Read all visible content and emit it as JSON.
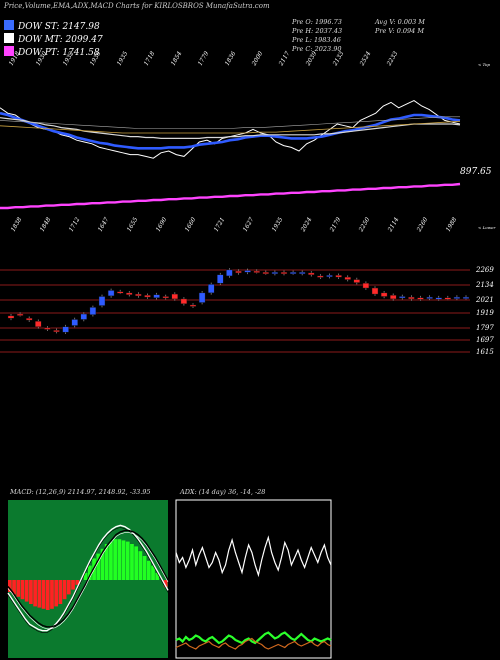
{
  "header": {
    "title": "Price,Volume,EMA,ADX,MACD Charts for KIRLOSBROS MunafaSutra.com"
  },
  "legend": [
    {
      "label": "DOW ST: 2147.98",
      "color": "#3a6cff"
    },
    {
      "label": "DOW MT: 2099.47",
      "color": "#ffffff"
    },
    {
      "label": "DOW PT: 1741.58",
      "color": "#ff44ff"
    }
  ],
  "ohlc": {
    "open": "Pre  O: 1996.73",
    "high": "Pre  H: 2037.43",
    "low": "Pre  L: 1983.46",
    "close": "Pre  C: 2023.90",
    "avg_volume": "Avg V: 0.003  M",
    "pre_volume": "Pre  V: 0.094  M"
  },
  "colors": {
    "ema_short": "#2f5bff",
    "ema_long": "#ff44ff",
    "up_candle": "#2f5bff",
    "down_candle": "#ff2a2a",
    "gridline": "#8b1a1a",
    "macd_panel_bg": "#0b7a2e",
    "macd_hist_pos": "#22ff22",
    "macd_hist_neg": "#ff2222"
  },
  "chart_data": [
    {
      "type": "line",
      "title": "EMA panel",
      "top_labels": [
        "1918",
        "1930",
        "1932",
        "1936",
        "1935",
        "1718",
        "1854",
        "1779",
        "1836",
        "2000",
        "2117",
        "2039",
        "2133",
        "2524",
        "2233"
      ],
      "bottom_labels": [
        "1838",
        "1848",
        "1712",
        "1647",
        "1655",
        "1690",
        "1660",
        "1721",
        "1627",
        "1935",
        "2024",
        "2179",
        "2250",
        "2114",
        "2260",
        "1988"
      ],
      "right_top_label": "< Top",
      "right_bottom_label": "< Lower",
      "last_value_label": "897.65",
      "series": [
        {
          "name": "price",
          "values": [
            58,
            52,
            50,
            44,
            40,
            36,
            34,
            32,
            28,
            26,
            22,
            20,
            18,
            14,
            12,
            10,
            8,
            6,
            6,
            4,
            2,
            8,
            10,
            6,
            4,
            12,
            20,
            22,
            18,
            24,
            26,
            28,
            30,
            34,
            30,
            28,
            20,
            16,
            14,
            10,
            18,
            22,
            28,
            34,
            40,
            38,
            36,
            44,
            48,
            52,
            60,
            64,
            58,
            62,
            66,
            60,
            56,
            50,
            44,
            42,
            40
          ]
        },
        {
          "name": "ema-fast",
          "values": [
            52,
            50,
            47,
            44,
            41,
            38,
            35,
            32,
            30,
            28,
            25,
            23,
            21,
            19,
            18,
            16,
            15,
            14,
            13,
            13,
            13,
            13,
            14,
            14,
            14,
            15,
            17,
            18,
            19,
            20,
            22,
            23,
            25,
            26,
            27,
            27,
            26,
            25,
            24,
            24,
            24,
            25,
            26,
            28,
            30,
            32,
            33,
            35,
            37,
            39,
            42,
            45,
            46,
            48,
            50,
            50,
            49,
            48,
            47,
            45,
            44
          ]
        },
        {
          "name": "ema-mid",
          "values": [
            47,
            46,
            45,
            44,
            42,
            41,
            39,
            38,
            36,
            35,
            34,
            32,
            31,
            30,
            29,
            28,
            27,
            26,
            26,
            25,
            25,
            24,
            24,
            24,
            24,
            24,
            24,
            25,
            25,
            25,
            26,
            26,
            27,
            27,
            28,
            28,
            28,
            28,
            28,
            28,
            28,
            28,
            29,
            29,
            30,
            31,
            32,
            33,
            34,
            35,
            36,
            37,
            38,
            39,
            40,
            40,
            40,
            40,
            40,
            40,
            39
          ]
        },
        {
          "name": "ema-slow",
          "values": [
            -10,
            -10,
            -9,
            -9,
            -8,
            -8,
            -7,
            -7,
            -6,
            -6,
            -5,
            -5,
            -4,
            -4,
            -3,
            -3,
            -2,
            -2,
            -1,
            -1,
            0,
            0,
            1,
            1,
            2,
            2,
            3,
            3,
            4,
            4,
            5,
            5,
            6,
            6,
            7,
            7,
            8,
            8,
            9,
            9,
            10,
            10,
            11,
            11,
            12,
            12,
            13,
            13,
            14,
            14,
            15,
            15,
            16,
            16,
            17,
            17,
            18,
            18,
            19,
            19,
            20
          ]
        }
      ]
    },
    {
      "type": "bar",
      "title": "Candlestick panel",
      "y_levels": [
        "2269",
        "2134",
        "2021",
        "1919",
        "1797",
        "1697",
        "1615"
      ],
      "series": [
        {
          "name": "open",
          "values": [
            1890,
            1905,
            1870,
            1845,
            1790,
            1770,
            1755,
            1810,
            1860,
            1900,
            1975,
            2055,
            2090,
            2080,
            2070,
            2060,
            2040,
            2050,
            2070,
            2030,
            1980,
            2000,
            2080,
            2160,
            2220,
            2260,
            2250,
            2260,
            2250,
            2240,
            2250,
            2245,
            2240,
            2245,
            2220,
            2215,
            2225,
            2210,
            2190,
            2160,
            2120,
            2080,
            2060,
            2040,
            2045,
            2040,
            2035,
            2030,
            2040,
            2035,
            2040
          ]
        },
        {
          "name": "close",
          "values": [
            1870,
            1900,
            1855,
            1800,
            1780,
            1760,
            1800,
            1860,
            1905,
            1960,
            2050,
            2100,
            2085,
            2065,
            2055,
            2045,
            2065,
            2040,
            2030,
            1990,
            1970,
            2080,
            2150,
            2230,
            2270,
            2245,
            2265,
            2255,
            2245,
            2250,
            2240,
            2250,
            2250,
            2230,
            2210,
            2225,
            2210,
            2190,
            2165,
            2120,
            2070,
            2050,
            2030,
            2050,
            2030,
            2030,
            2045,
            2040,
            2035,
            2045,
            2045
          ]
        }
      ]
    },
    {
      "type": "line",
      "title": "MACD",
      "params": "MACD: (12,26,9) 2114.97, 2148.92, -33.95",
      "histogram": [
        -10,
        -12,
        -14,
        -16,
        -18,
        -20,
        -22,
        -23,
        -24,
        -25,
        -24,
        -22,
        -20,
        -16,
        -12,
        -8,
        -4,
        0,
        6,
        12,
        18,
        22,
        26,
        30,
        32,
        34,
        34,
        33,
        32,
        30,
        28,
        24,
        20,
        16,
        12,
        6,
        0,
        -6
      ],
      "series": [
        {
          "name": "macd",
          "values": [
            -20,
            -30,
            -40,
            -50,
            -60,
            -68,
            -72,
            -76,
            -78,
            -78,
            -74,
            -68,
            -60,
            -50,
            -38,
            -26,
            -12,
            2,
            16,
            30,
            42,
            54,
            64,
            72,
            78,
            82,
            84,
            82,
            78,
            72,
            64,
            54,
            44,
            32,
            20,
            8,
            -4,
            -16
          ]
        },
        {
          "name": "signal",
          "values": [
            -10,
            -18,
            -28,
            -38,
            -46,
            -54,
            -60,
            -66,
            -70,
            -72,
            -72,
            -70,
            -66,
            -60,
            -52,
            -42,
            -30,
            -18,
            -6,
            8,
            20,
            32,
            44,
            54,
            62,
            70,
            74,
            76,
            76,
            74,
            70,
            64,
            56,
            46,
            36,
            24,
            12,
            0
          ]
        }
      ]
    },
    {
      "type": "line",
      "title": "ADX",
      "params": "ADX: (14 day) 36, -14, -28",
      "series": [
        {
          "name": "adx-white",
          "values": [
            70,
            62,
            66,
            58,
            64,
            72,
            60,
            68,
            74,
            66,
            58,
            62,
            70,
            64,
            54,
            60,
            72,
            80,
            70,
            62,
            54,
            66,
            76,
            70,
            60,
            52,
            64,
            74,
            82,
            70,
            62,
            56,
            66,
            78,
            72,
            60,
            66,
            72,
            64,
            58,
            66,
            74,
            68,
            62,
            70,
            76,
            66,
            60
          ]
        },
        {
          "name": "di-plus",
          "values": [
            20,
            22,
            18,
            24,
            20,
            22,
            26,
            24,
            20,
            18,
            22,
            24,
            20,
            16,
            18,
            22,
            26,
            24,
            20,
            18,
            16,
            20,
            22,
            18,
            16,
            20,
            24,
            28,
            30,
            26,
            22,
            24,
            28,
            30,
            26,
            22,
            20,
            24,
            28,
            24,
            20,
            18,
            22,
            20,
            18,
            20,
            22,
            20
          ]
        },
        {
          "name": "di-minus",
          "values": [
            10,
            12,
            14,
            16,
            12,
            10,
            8,
            12,
            14,
            16,
            18,
            14,
            12,
            10,
            14,
            16,
            12,
            10,
            8,
            12,
            14,
            18,
            20,
            22,
            18,
            16,
            14,
            10,
            8,
            10,
            12,
            14,
            12,
            10,
            14,
            16,
            18,
            14,
            12,
            14,
            16,
            18,
            14,
            12,
            16,
            18,
            14,
            12
          ]
        }
      ]
    }
  ]
}
